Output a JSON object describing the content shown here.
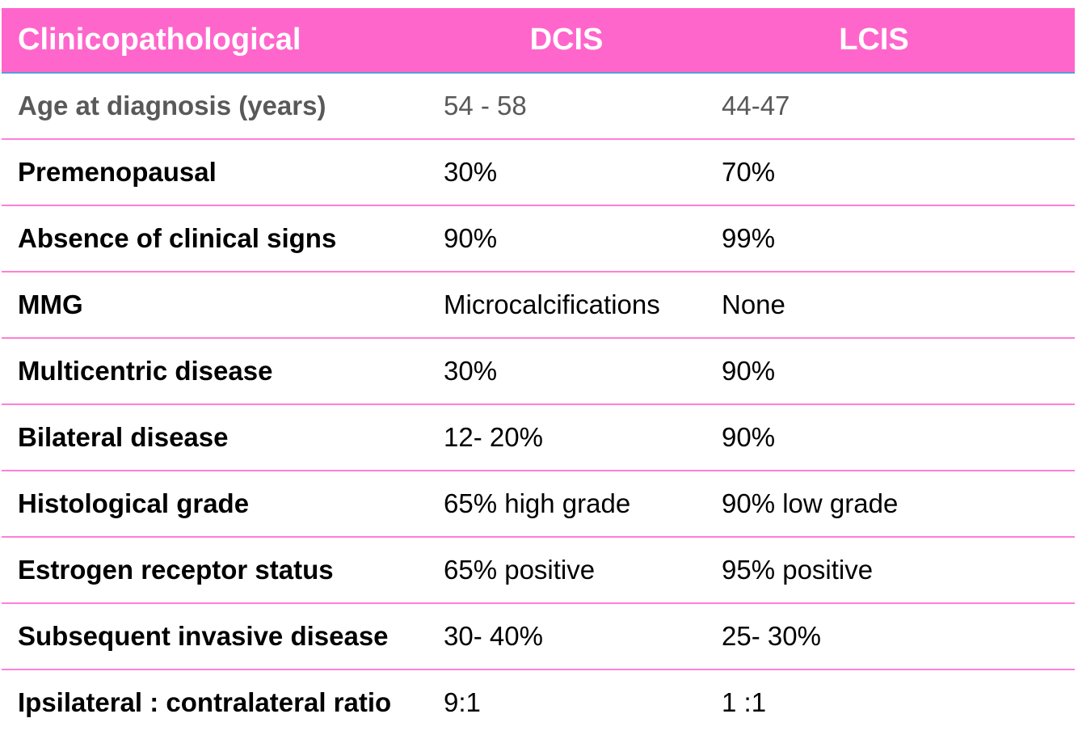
{
  "table": {
    "headers": [
      "Clinicopathological",
      "DCIS",
      "LCIS"
    ],
    "rows": [
      {
        "label": "Age at diagnosis (years)",
        "dcis": "54 - 58",
        "lcis": "44-47"
      },
      {
        "label": "Premenopausal",
        "dcis": "30%",
        "lcis": "70%"
      },
      {
        "label": "Absence of clinical signs",
        "dcis": "90%",
        "lcis": "99%"
      },
      {
        "label": "MMG",
        "dcis": "Microcalcifications",
        "lcis": "None"
      },
      {
        "label": "Multicentric disease",
        "dcis": "30%",
        "lcis": "90%"
      },
      {
        "label": "Bilateral disease",
        "dcis": "12- 20%",
        "lcis": "90%"
      },
      {
        "label": "Histological grade",
        "dcis": "65% high grade",
        "lcis": "90% low grade"
      },
      {
        "label": "Estrogen receptor status",
        "dcis": "65% positive",
        "lcis": "95% positive"
      },
      {
        "label": "Subsequent invasive disease",
        "dcis": "30- 40%",
        "lcis": "25- 30%"
      },
      {
        "label": "Ipsilateral : contralateral ratio",
        "dcis": "9:1",
        "lcis": "1 :1"
      }
    ]
  },
  "colors": {
    "header_bg": "#ff66cc",
    "row_divider": "#ff80d5",
    "header_divider": "#5b9bd5"
  }
}
